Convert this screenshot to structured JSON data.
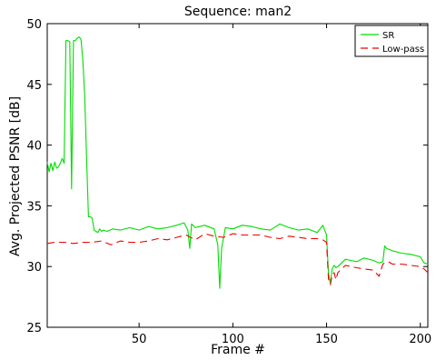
{
  "chart_data": {
    "type": "line",
    "title": "Sequence: man2",
    "xlabel": "Frame #",
    "ylabel": "Avg. Projected PSNR [dB]",
    "xlim": [
      1,
      204
    ],
    "ylim": [
      25,
      50
    ],
    "xticks": [
      50,
      100,
      150,
      200
    ],
    "yticks": [
      25,
      30,
      35,
      40,
      45,
      50
    ],
    "grid": false,
    "legend_position": "top-right",
    "series": [
      {
        "name": "SR",
        "color": "#00dd00",
        "dash": "solid",
        "x": [
          1,
          2,
          3,
          4,
          5,
          6,
          7,
          8,
          9,
          10,
          11,
          12,
          13,
          14,
          15,
          16,
          17,
          18,
          19,
          20,
          21,
          22,
          23,
          24,
          25,
          26,
          27,
          28,
          29,
          30,
          31,
          33,
          36,
          40,
          45,
          50,
          55,
          60,
          65,
          70,
          74,
          76,
          77,
          78,
          80,
          85,
          90,
          92,
          93,
          94,
          96,
          100,
          105,
          110,
          115,
          120,
          125,
          130,
          135,
          140,
          145,
          148,
          150,
          151,
          152,
          153,
          154,
          155,
          156,
          158,
          160,
          163,
          166,
          170,
          175,
          178,
          180,
          181,
          182,
          185,
          190,
          195,
          200,
          202,
          204
        ],
        "y": [
          38.6,
          37.8,
          38.5,
          37.9,
          38.6,
          38.1,
          38.2,
          38.5,
          38.9,
          38.5,
          48.6,
          48.6,
          48.5,
          36.4,
          48.6,
          48.6,
          48.8,
          48.9,
          48.7,
          47.0,
          44.0,
          39.0,
          34.1,
          34.1,
          34.0,
          33.0,
          32.9,
          32.8,
          33.1,
          32.9,
          33.0,
          32.9,
          33.1,
          33.0,
          33.2,
          33.0,
          33.3,
          33.1,
          33.2,
          33.4,
          33.6,
          33.0,
          31.5,
          33.5,
          33.2,
          33.4,
          33.1,
          31.8,
          28.2,
          31.5,
          33.2,
          33.1,
          33.4,
          33.3,
          33.1,
          33.0,
          33.5,
          33.2,
          33.0,
          33.1,
          32.8,
          33.4,
          32.6,
          29.5,
          28.6,
          29.8,
          30.1,
          29.9,
          30.0,
          30.3,
          30.6,
          30.5,
          30.4,
          30.7,
          30.5,
          30.3,
          30.4,
          31.7,
          31.5,
          31.3,
          31.1,
          31.0,
          30.8,
          30.3,
          30.2
        ]
      },
      {
        "name": "Low-pass",
        "color": "#ee0000",
        "dash": "8,5",
        "x": [
          1,
          5,
          10,
          15,
          20,
          25,
          30,
          35,
          40,
          45,
          50,
          55,
          60,
          65,
          70,
          75,
          80,
          85,
          90,
          95,
          100,
          105,
          110,
          115,
          120,
          125,
          130,
          135,
          140,
          145,
          148,
          150,
          151,
          152,
          153,
          154,
          155,
          156,
          158,
          160,
          163,
          166,
          170,
          175,
          178,
          180,
          181,
          183,
          185,
          190,
          195,
          200,
          202,
          204
        ],
        "y": [
          31.9,
          32.0,
          32.0,
          31.9,
          32.0,
          32.0,
          32.1,
          31.8,
          32.1,
          32.0,
          32.0,
          32.1,
          32.3,
          32.2,
          32.4,
          32.6,
          32.2,
          32.7,
          32.5,
          32.4,
          32.7,
          32.6,
          32.6,
          32.6,
          32.4,
          32.3,
          32.5,
          32.4,
          32.3,
          32.3,
          32.2,
          32.0,
          29.0,
          28.5,
          29.3,
          29.5,
          28.9,
          29.5,
          29.8,
          30.1,
          30.0,
          29.9,
          29.8,
          29.7,
          29.2,
          30.2,
          30.3,
          30.4,
          30.2,
          30.2,
          30.1,
          30.0,
          29.8,
          29.5
        ]
      }
    ]
  }
}
